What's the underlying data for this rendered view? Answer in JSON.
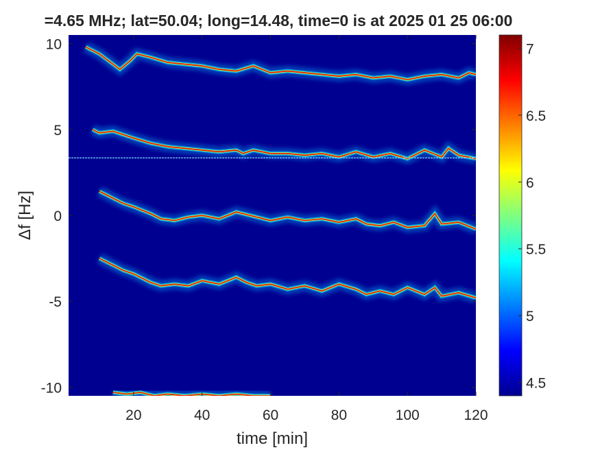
{
  "chart_data": {
    "type": "heatmap",
    "title": "=4.65 MHz;  lat=50.04; long=14.48, time=0 is at 2025 01 25 06:00",
    "xlabel": "time [min]",
    "ylabel": "Δf [Hz]",
    "xlim": [
      1,
      120
    ],
    "ylim": [
      -10.5,
      10.5
    ],
    "xticks": [
      20,
      40,
      60,
      80,
      100,
      120
    ],
    "xtick_labels": [
      "20",
      "40",
      "60",
      "80",
      "100",
      "120"
    ],
    "yticks": [
      10,
      5,
      0,
      -5,
      -10
    ],
    "ytick_labels": [
      "10",
      "5",
      "0",
      "-5",
      "-10"
    ],
    "colorbar": {
      "range": [
        4.4,
        7.1
      ],
      "ticks": [
        7,
        6.5,
        6,
        5.5,
        5,
        4.5
      ],
      "tick_labels": [
        "7",
        "6.5",
        "6",
        "5.5",
        "5",
        "4.5"
      ],
      "colormap": "jet"
    },
    "background_value": 4.42,
    "reference_line": {
      "y": 3.35,
      "color": "#7fd4ff"
    },
    "series": [
      {
        "x": [
          6,
          10,
          14,
          16,
          19,
          21,
          25,
          30,
          35,
          40,
          45,
          50,
          55,
          60,
          65,
          70,
          75,
          80,
          85,
          90,
          95,
          100,
          105,
          110,
          115,
          118,
          120
        ],
        "y": [
          9.8,
          9.4,
          8.8,
          8.5,
          9.0,
          9.4,
          9.2,
          8.9,
          8.8,
          8.7,
          8.5,
          8.4,
          8.7,
          8.3,
          8.4,
          8.3,
          8.2,
          8.1,
          8.2,
          8.0,
          8.1,
          7.9,
          8.1,
          8.2,
          8.0,
          8.3,
          8.2
        ]
      },
      {
        "x": [
          8,
          10,
          14,
          17,
          20,
          25,
          30,
          35,
          40,
          45,
          50,
          52,
          55,
          60,
          65,
          70,
          75,
          80,
          85,
          90,
          95,
          100,
          105,
          110,
          112,
          115,
          120
        ],
        "y": [
          5.0,
          4.8,
          4.9,
          4.7,
          4.5,
          4.2,
          4.0,
          3.9,
          3.8,
          3.7,
          3.8,
          3.6,
          3.8,
          3.6,
          3.6,
          3.5,
          3.6,
          3.4,
          3.7,
          3.4,
          3.6,
          3.3,
          3.8,
          3.4,
          3.9,
          3.5,
          3.3
        ]
      },
      {
        "x": [
          10,
          12,
          14,
          17,
          20,
          25,
          28,
          32,
          36,
          40,
          45,
          50,
          52,
          56,
          60,
          65,
          70,
          75,
          80,
          85,
          88,
          92,
          96,
          100,
          105,
          108,
          110,
          115,
          120
        ],
        "y": [
          1.4,
          1.2,
          1.0,
          0.7,
          0.5,
          0.1,
          -0.2,
          -0.3,
          -0.1,
          0.0,
          -0.2,
          0.2,
          0.1,
          -0.1,
          -0.3,
          -0.1,
          -0.3,
          -0.2,
          -0.4,
          -0.2,
          -0.5,
          -0.6,
          -0.4,
          -0.7,
          -0.6,
          0.1,
          -0.5,
          -0.4,
          -0.8
        ]
      },
      {
        "x": [
          10,
          12,
          14,
          17,
          20,
          25,
          28,
          32,
          36,
          40,
          45,
          50,
          53,
          56,
          60,
          65,
          70,
          75,
          80,
          85,
          88,
          92,
          96,
          100,
          105,
          108,
          110,
          115,
          120
        ],
        "y": [
          -2.5,
          -2.7,
          -2.9,
          -3.2,
          -3.4,
          -3.9,
          -4.1,
          -4.0,
          -4.1,
          -3.8,
          -4.0,
          -3.6,
          -3.9,
          -4.1,
          -4.0,
          -4.3,
          -4.1,
          -4.4,
          -4.0,
          -4.3,
          -4.6,
          -4.4,
          -4.6,
          -4.2,
          -4.6,
          -4.2,
          -4.7,
          -4.5,
          -4.8
        ]
      },
      {
        "x": [
          14,
          18,
          22,
          26,
          30,
          35,
          40,
          45,
          50,
          55,
          60
        ],
        "y": [
          -10.3,
          -10.4,
          -10.3,
          -10.5,
          -10.4,
          -10.5,
          -10.4,
          -10.5,
          -10.4,
          -10.5,
          -10.5
        ]
      }
    ]
  }
}
